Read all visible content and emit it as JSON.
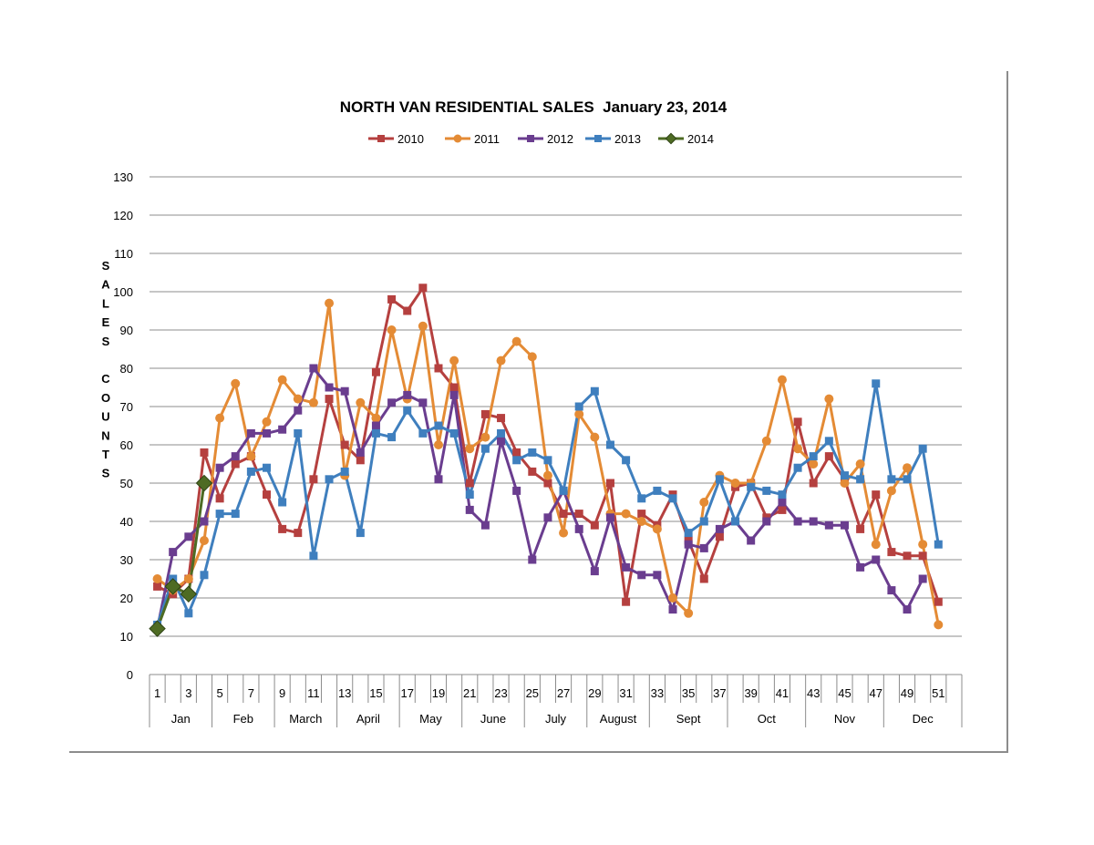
{
  "chart_data": {
    "type": "line",
    "title": "NORTH VAN RESIDENTIAL SALES  January 23, 2014",
    "ylabel": "SALES COUNTS",
    "ylabel_letters": [
      "S",
      "A",
      "L",
      "E",
      "S",
      "",
      "C",
      "O",
      "U",
      "N",
      "T",
      "S"
    ],
    "ylim": [
      0,
      130
    ],
    "yticks": [
      0,
      10,
      20,
      30,
      40,
      50,
      60,
      70,
      80,
      90,
      100,
      110,
      120,
      130
    ],
    "grid": "horizontal",
    "legend_position": "top",
    "weeks": 52,
    "week_tick_labels": [
      "1",
      "3",
      "5",
      "7",
      "9",
      "11",
      "13",
      "15",
      "17",
      "19",
      "21",
      "23",
      "25",
      "27",
      "29",
      "31",
      "33",
      "35",
      "37",
      "39",
      "41",
      "43",
      "45",
      "47",
      "49",
      "51"
    ],
    "months": [
      {
        "label": "Jan",
        "start": 1,
        "end": 4
      },
      {
        "label": "Feb",
        "start": 5,
        "end": 8
      },
      {
        "label": "March",
        "start": 9,
        "end": 12
      },
      {
        "label": "April",
        "start": 13,
        "end": 16
      },
      {
        "label": "May",
        "start": 17,
        "end": 20
      },
      {
        "label": "June",
        "start": 21,
        "end": 24
      },
      {
        "label": "July",
        "start": 25,
        "end": 28
      },
      {
        "label": "August",
        "start": 29,
        "end": 32
      },
      {
        "label": "Sept",
        "start": 33,
        "end": 37
      },
      {
        "label": "Oct",
        "start": 38,
        "end": 42
      },
      {
        "label": "Nov",
        "start": 43,
        "end": 47
      },
      {
        "label": "Dec",
        "start": 48,
        "end": 52
      }
    ],
    "series": [
      {
        "name": "2010",
        "color": "#b5403f",
        "marker": "square",
        "values": [
          23,
          21,
          25,
          58,
          46,
          55,
          57,
          47,
          38,
          37,
          51,
          72,
          60,
          56,
          79,
          98,
          95,
          101,
          80,
          75,
          50,
          68,
          67,
          58,
          53,
          50,
          42,
          42,
          39,
          50,
          19,
          42,
          39,
          47,
          35,
          25,
          36,
          49,
          50,
          41,
          43,
          66,
          50,
          57,
          51,
          38,
          47,
          32,
          31,
          31,
          19
        ]
      },
      {
        "name": "2011",
        "color": "#e48b35",
        "marker": "circle",
        "values": [
          25,
          22,
          25,
          35,
          67,
          76,
          57,
          66,
          77,
          72,
          71,
          97,
          52,
          71,
          67,
          90,
          72,
          91,
          60,
          82,
          59,
          62,
          82,
          87,
          83,
          52,
          37,
          68,
          62,
          42,
          42,
          40,
          38,
          20,
          16,
          45,
          52,
          50,
          50,
          61,
          77,
          59,
          55,
          72,
          50,
          55,
          34,
          48,
          54,
          34,
          13
        ]
      },
      {
        "name": "2012",
        "color": "#6a3d8f",
        "marker": "square",
        "values": [
          12,
          32,
          36,
          40,
          54,
          57,
          63,
          63,
          64,
          69,
          80,
          75,
          74,
          58,
          65,
          71,
          73,
          71,
          51,
          73,
          43,
          39,
          61,
          48,
          30,
          41,
          48,
          38,
          27,
          41,
          28,
          26,
          26,
          17,
          34,
          33,
          38,
          40,
          35,
          40,
          45,
          40,
          40,
          39,
          39,
          28,
          30,
          22,
          17,
          25,
          null
        ]
      },
      {
        "name": "2013",
        "color": "#3f7fbe",
        "marker": "square",
        "values": [
          13,
          25,
          16,
          26,
          42,
          42,
          53,
          54,
          45,
          63,
          31,
          51,
          53,
          37,
          63,
          62,
          69,
          63,
          65,
          63,
          47,
          59,
          63,
          56,
          58,
          56,
          48,
          70,
          74,
          60,
          56,
          46,
          48,
          46,
          37,
          40,
          51,
          40,
          49,
          48,
          47,
          54,
          57,
          61,
          52,
          51,
          76,
          51,
          51,
          59,
          34
        ]
      },
      {
        "name": "2014",
        "color": "#4e6b23",
        "marker": "diamond",
        "values": [
          12,
          23,
          21,
          50
        ]
      }
    ]
  }
}
